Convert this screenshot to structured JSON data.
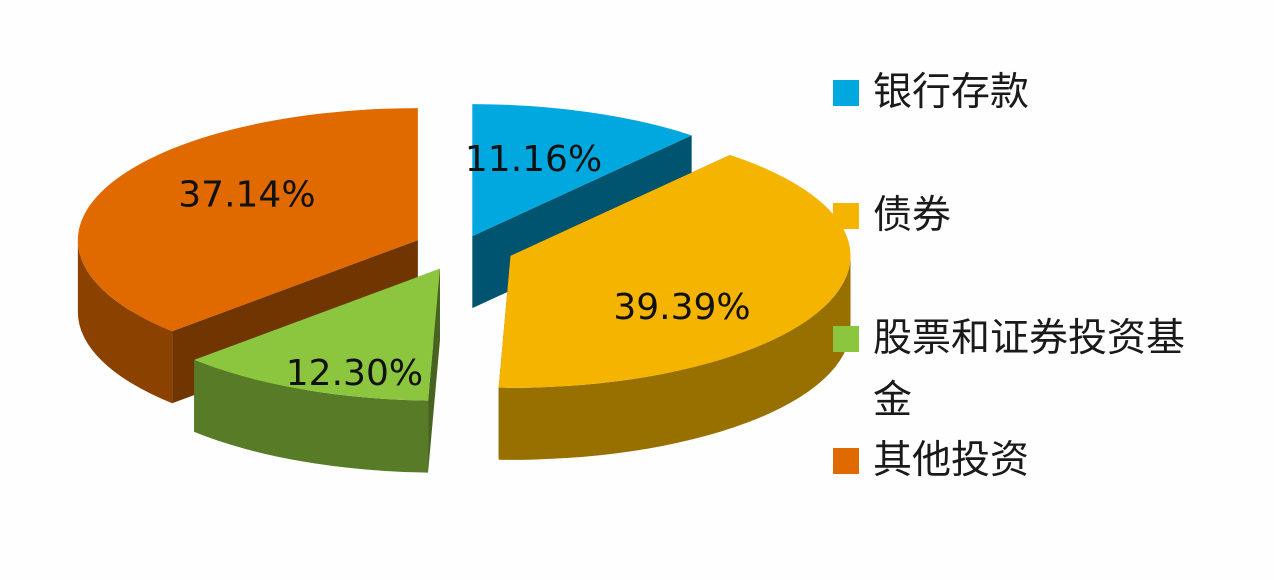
{
  "chart_data": {
    "type": "pie",
    "style": "3d-exploded",
    "title": "",
    "categories": [
      "银行存款",
      "债券",
      "股票和证券投资基金",
      "其他投资"
    ],
    "values": [
      11.16,
      39.39,
      12.3,
      37.14
    ],
    "labels": [
      "11.16%",
      "39.39%",
      "12.30%",
      "37.14%"
    ],
    "colors": [
      "#00a8e0",
      "#f5b400",
      "#8cc63f",
      "#e06a00"
    ],
    "legend_position": "right",
    "legend": [
      {
        "label": "银行存款",
        "color": "#00a8e0"
      },
      {
        "label": "债券",
        "color": "#f5b400"
      },
      {
        "label": "股票和证券投资基金",
        "color": "#8cc63f"
      },
      {
        "label": "其他投资",
        "color": "#e06a00"
      }
    ]
  }
}
